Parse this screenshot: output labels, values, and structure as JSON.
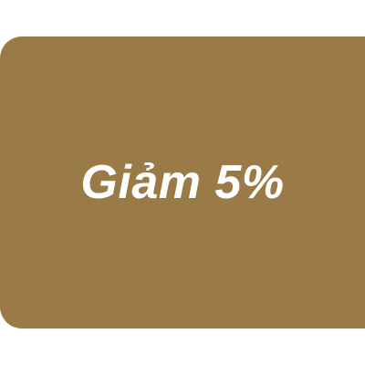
{
  "badge": {
    "label": "Giảm 5%",
    "background_color": "#9a7b47",
    "text_color": "#ffffff"
  }
}
